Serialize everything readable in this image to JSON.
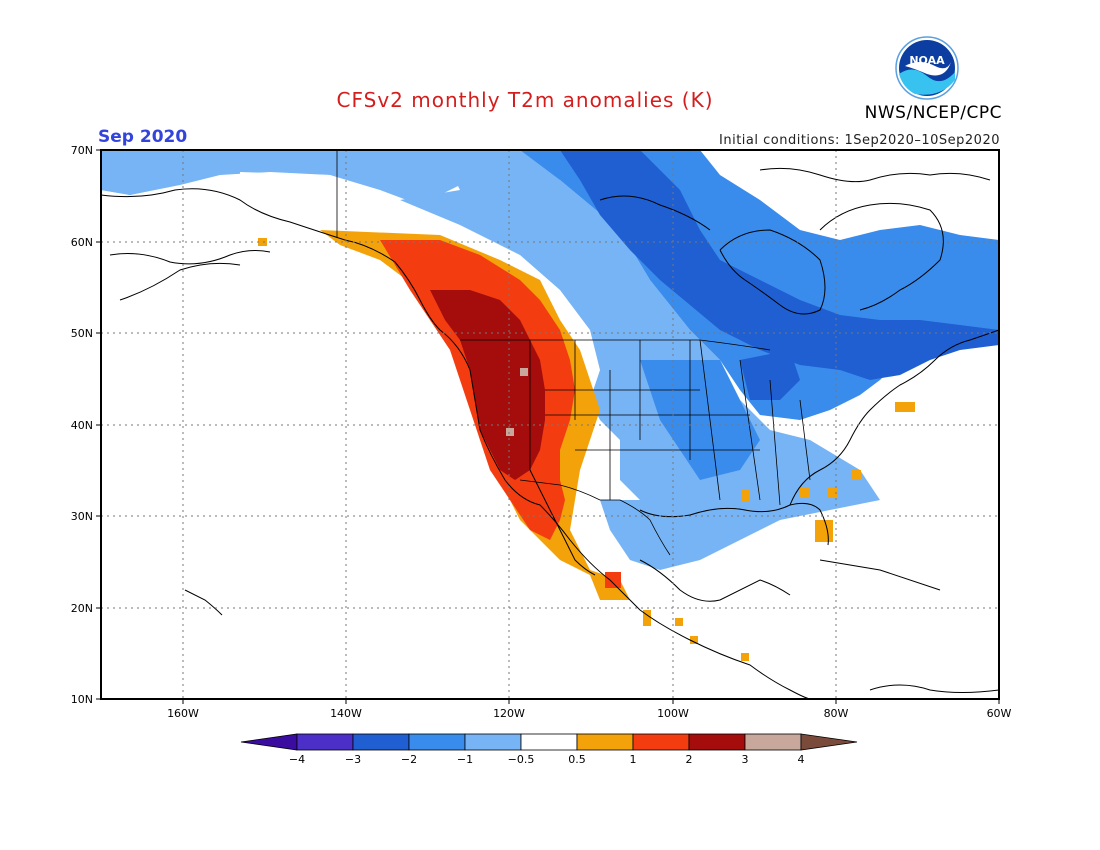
{
  "header": {
    "title": "CFSv2 monthly T2m anomalies (K)",
    "month": "Sep 2020",
    "initial_conditions": "Initial conditions: 1Sep2020–10Sep2020",
    "agency": "NWS/NCEP/CPC",
    "logo_text": "NOAA"
  },
  "axes": {
    "lat_labels": [
      "70N",
      "60N",
      "50N",
      "40N",
      "30N",
      "20N",
      "10N"
    ],
    "lat_values": [
      70,
      60,
      50,
      40,
      30,
      20,
      10
    ],
    "lon_labels": [
      "160W",
      "140W",
      "120W",
      "100W",
      "80W",
      "60W"
    ],
    "lon_values": [
      -160,
      -140,
      -120,
      -100,
      -80,
      -60
    ],
    "lon_range": [
      -170,
      -60
    ],
    "lat_range": [
      10,
      70
    ]
  },
  "colorbar": {
    "labels": [
      "−4",
      "−3",
      "−2",
      "−1",
      "−0.5",
      "0.5",
      "1",
      "2",
      "3",
      "4"
    ],
    "colors": [
      "#4c2fc7",
      "#1f5fd1",
      "#3a8cec",
      "#77b4f5",
      "#ffffff",
      "#f4a20a",
      "#f33d11",
      "#a50c0c",
      "#c8a89b"
    ],
    "low_extend": "#3a0ca0",
    "high_extend": "#7a4a3a"
  },
  "legend_colors": {
    "cool3": "#1f5fd1",
    "cool2": "#3a8cec",
    "cool1": "#77b4f5",
    "warm1": "#f4a20a",
    "warm2": "#f33d11",
    "warm3": "#a50c0c",
    "warm4": "#c8a89b"
  }
}
